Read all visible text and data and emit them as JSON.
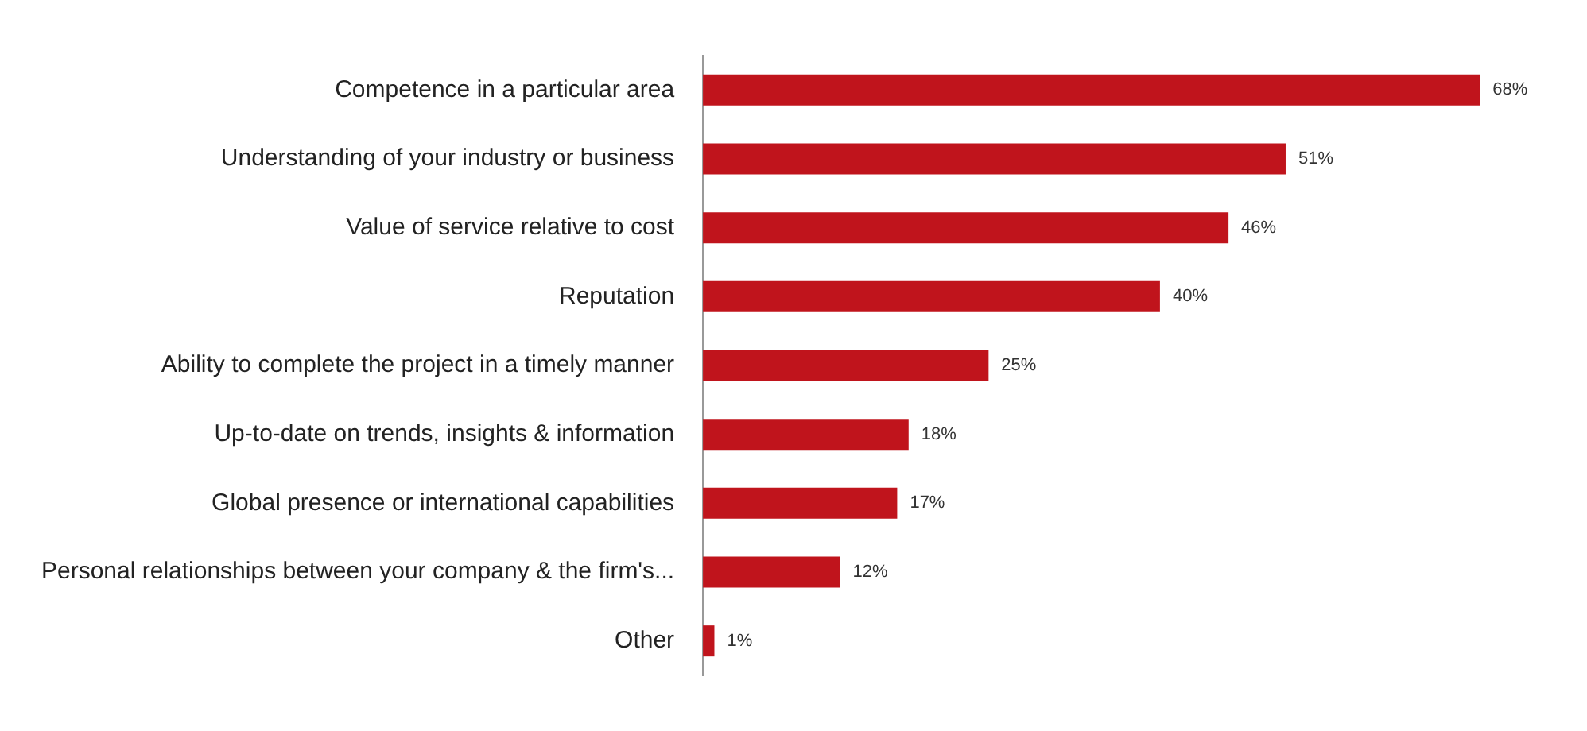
{
  "chart_data": {
    "type": "bar",
    "orientation": "horizontal",
    "categories": [
      "Competence in a particular area",
      "Understanding of your industry or business",
      "Value of service relative to cost",
      "Reputation",
      "Ability to complete the project in a timely manner",
      "Up-to-date on trends, insights & information",
      "Global presence or international capabilities",
      "Personal relationships between your company & the firm's...",
      "Other"
    ],
    "values": [
      68,
      51,
      46,
      40,
      25,
      18,
      17,
      12,
      1
    ],
    "value_labels": [
      "68%",
      "51%",
      "46%",
      "40%",
      "25%",
      "18%",
      "17%",
      "12%",
      "1%"
    ],
    "color": "#c0141c",
    "grid": false,
    "legend": false
  }
}
